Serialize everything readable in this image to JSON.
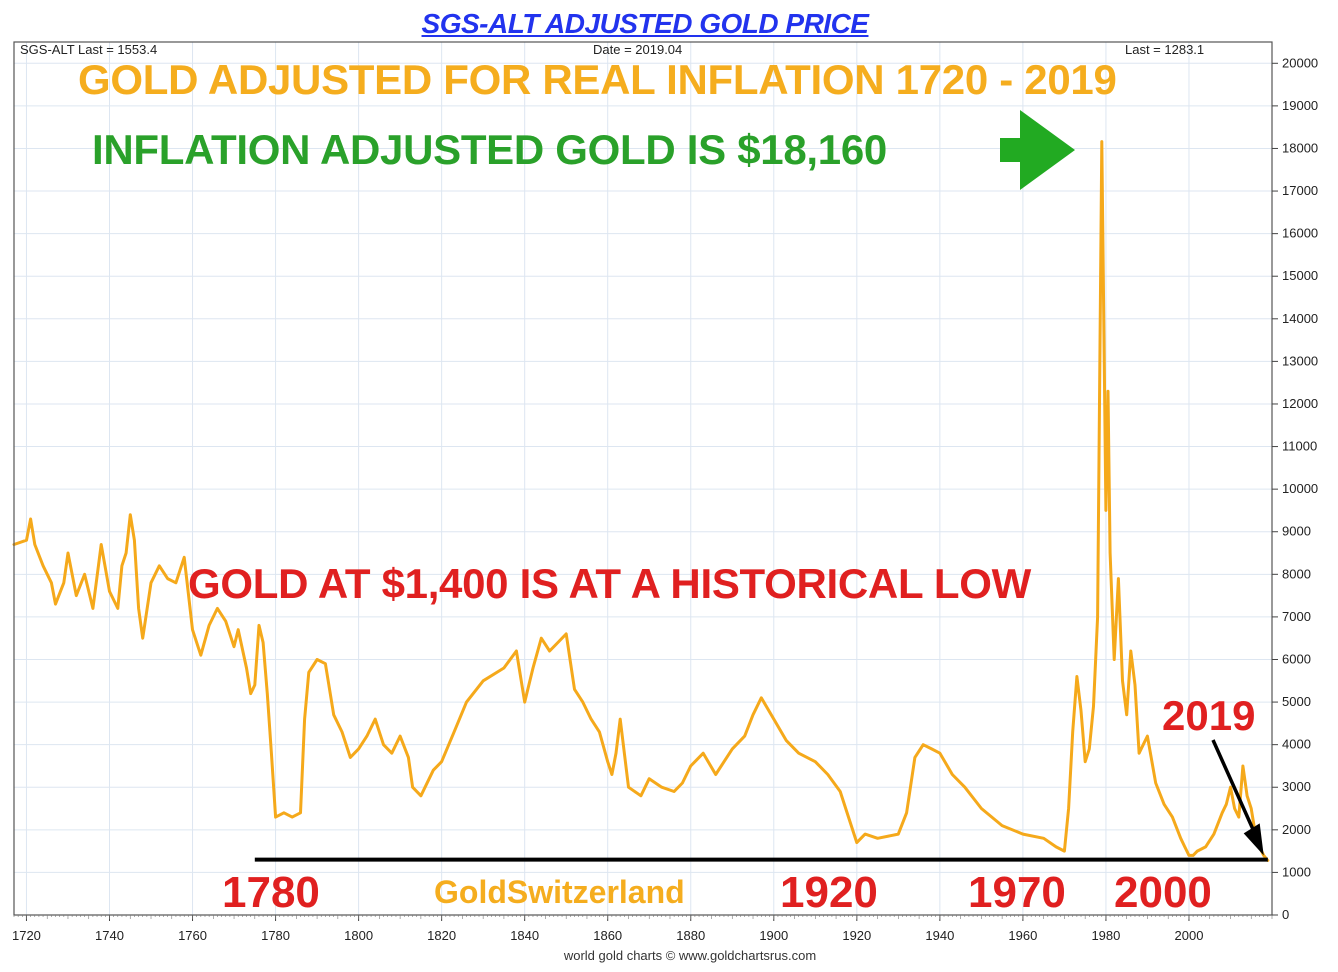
{
  "header": {
    "title": "SGS-ALT ADJUSTED  GOLD PRICE",
    "left_info": "SGS-ALT Last = 1553.4",
    "center_info": "Date = 2019.04",
    "right_info": "Last = 1283.1"
  },
  "footer": {
    "credit": "world gold charts © www.goldchartsrus.com"
  },
  "annotations": {
    "headline": "GOLD ADJUSTED FOR REAL INFLATION  1720 - 2019",
    "peak_note": "INFLATION ADJUSTED GOLD IS $18,160",
    "low_note": "GOLD AT $1,400 IS AT A HISTORICAL LOW",
    "label_2019": "2019",
    "year_1780": "1780",
    "year_1920": "1920",
    "year_1970": "1970",
    "year_2000": "2000",
    "brand": "GoldSwitzerland"
  },
  "colors": {
    "series": "#f5a91b",
    "headline": "#f5ad1e",
    "peak_note": "#2aa12a",
    "low_note": "#e02020",
    "title": "#2233ee",
    "arrow_green": "#22aa22",
    "support_line": "#000000"
  },
  "chart_data": {
    "type": "line",
    "title": "SGS-ALT ADJUSTED  GOLD PRICE",
    "xlim": [
      1717,
      2020
    ],
    "ylim": [
      0,
      20500
    ],
    "x_ticks": [
      1720,
      1740,
      1760,
      1780,
      1800,
      1820,
      1840,
      1860,
      1880,
      1900,
      1920,
      1940,
      1960,
      1980,
      2000
    ],
    "y_ticks": [
      0,
      1000,
      2000,
      3000,
      4000,
      5000,
      6000,
      7000,
      8000,
      9000,
      10000,
      11000,
      12000,
      13000,
      14000,
      15000,
      16000,
      17000,
      18000,
      19000,
      20000
    ],
    "grid": true,
    "y_axis_side": "right",
    "series": [
      {
        "x": [
          1717,
          1720,
          1721,
          1722,
          1724,
          1726,
          1727,
          1729,
          1730,
          1732,
          1734,
          1736,
          1738,
          1740,
          1742,
          1743,
          1744,
          1745,
          1746,
          1747,
          1748,
          1750,
          1752,
          1754,
          1756,
          1758,
          1760,
          1762,
          1764,
          1766,
          1768,
          1770,
          1771,
          1773,
          1774,
          1775,
          1776,
          1777,
          1778,
          1779,
          1780,
          1782,
          1784,
          1786,
          1787,
          1788,
          1790,
          1792,
          1794,
          1796,
          1798,
          1800,
          1802,
          1804,
          1806,
          1808,
          1810,
          1812,
          1813,
          1815,
          1818,
          1820,
          1823,
          1826,
          1830,
          1835,
          1838,
          1840,
          1842,
          1844,
          1846,
          1848,
          1850,
          1852,
          1854,
          1856,
          1858,
          1860,
          1861,
          1862,
          1863,
          1865,
          1868,
          1870,
          1873,
          1876,
          1878,
          1880,
          1883,
          1886,
          1890,
          1893,
          1895,
          1897,
          1900,
          1903,
          1906,
          1910,
          1913,
          1916,
          1918,
          1920,
          1922,
          1925,
          1930,
          1932,
          1934,
          1936,
          1938,
          1940,
          1943,
          1946,
          1950,
          1955,
          1960,
          1965,
          1968,
          1970,
          1971,
          1972,
          1973,
          1974,
          1975,
          1976,
          1977,
          1978,
          1979,
          1980,
          1980.5,
          1981,
          1982,
          1983,
          1984,
          1985,
          1986,
          1987,
          1988,
          1990,
          1992,
          1994,
          1996,
          1998,
          1999,
          2000,
          2001,
          2002,
          2004,
          2006,
          2008,
          2009,
          2010,
          2011,
          2012,
          2013,
          2014,
          2015,
          2016,
          2017,
          2018,
          2019
        ],
        "values": [
          8700,
          8800,
          9300,
          8700,
          8200,
          7800,
          7300,
          7800,
          8500,
          7500,
          8000,
          7200,
          8700,
          7600,
          7200,
          8200,
          8500,
          9400,
          8800,
          7200,
          6500,
          7800,
          8200,
          7900,
          7800,
          8400,
          6700,
          6100,
          6800,
          7200,
          6900,
          6300,
          6700,
          5800,
          5200,
          5400,
          6800,
          6400,
          5200,
          3800,
          2300,
          2400,
          2300,
          2400,
          4600,
          5700,
          6000,
          5900,
          4700,
          4300,
          3700,
          3900,
          4200,
          4600,
          4000,
          3800,
          4200,
          3700,
          3000,
          2800,
          3400,
          3600,
          4300,
          5000,
          5500,
          5800,
          6200,
          5000,
          5800,
          6500,
          6200,
          6400,
          6600,
          5300,
          5000,
          4600,
          4300,
          3600,
          3300,
          3800,
          4600,
          3000,
          2800,
          3200,
          3000,
          2900,
          3100,
          3500,
          3800,
          3300,
          3900,
          4200,
          4700,
          5100,
          4600,
          4100,
          3800,
          3600,
          3300,
          2900,
          2300,
          1700,
          1900,
          1800,
          1900,
          2400,
          3700,
          4000,
          3900,
          3800,
          3300,
          3000,
          2500,
          2100,
          1900,
          1800,
          1600,
          1500,
          2500,
          4300,
          5600,
          4800,
          3600,
          3900,
          4900,
          7000,
          18160,
          9500,
          12300,
          8500,
          6000,
          7900,
          5500,
          4700,
          6200,
          5400,
          3800,
          4200,
          3100,
          2600,
          2300,
          1800,
          1600,
          1400,
          1400,
          1500,
          1600,
          1900,
          2400,
          2600,
          3000,
          2500,
          2300,
          3500,
          2800,
          2500,
          1900,
          1600,
          1400,
          1283
        ]
      }
    ],
    "support_line": {
      "from_x": 1775,
      "to_x": 2019,
      "y": 1300
    },
    "arrow_2019_target": {
      "x": 2018,
      "y": 1400
    }
  }
}
